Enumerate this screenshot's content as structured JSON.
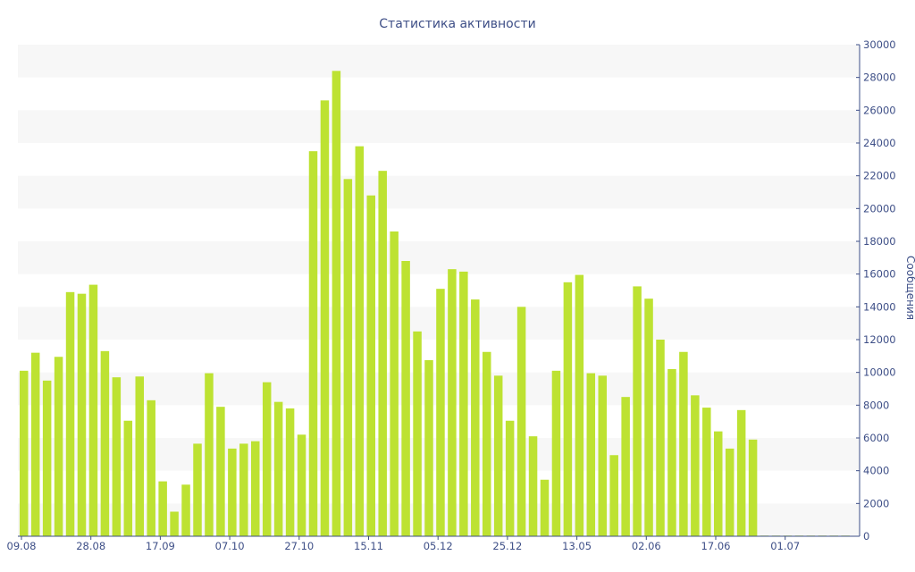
{
  "chart_data": {
    "type": "bar",
    "title": "Статистика активности",
    "ylabel": "Сообщения",
    "xlabel": "",
    "ylim": [
      0,
      30000
    ],
    "y_ticks": [
      0,
      2000,
      4000,
      6000,
      8000,
      10000,
      12000,
      14000,
      16000,
      18000,
      20000,
      22000,
      24000,
      26000,
      28000,
      30000
    ],
    "y_axis_side": "right",
    "grid": "alternating horizontal bands",
    "x_tick_labels": [
      "09.08",
      "28.08",
      "17.09",
      "07.10",
      "27.10",
      "15.11",
      "05.12",
      "25.12",
      "13.05",
      "02.06",
      "17.06",
      "01.07"
    ],
    "values": [
      10100,
      11200,
      9500,
      10950,
      14900,
      14800,
      15350,
      11300,
      9700,
      7050,
      9750,
      8300,
      3350,
      1500,
      3150,
      5650,
      9950,
      7900,
      5350,
      5650,
      5800,
      9400,
      8200,
      7800,
      6200,
      23500,
      26600,
      28400,
      21800,
      23800,
      20800,
      22300,
      18600,
      16800,
      12500,
      10750,
      15100,
      16300,
      16150,
      14450,
      11250,
      9800,
      7050,
      14000,
      6100,
      3450,
      10100,
      15500,
      15950,
      9950,
      9800,
      4950,
      8500,
      15250,
      14500,
      12000,
      10200,
      11250,
      8600,
      7850,
      6400,
      5350,
      7700,
      5900,
      40,
      40,
      40,
      40,
      40,
      40,
      40,
      40
    ],
    "colors": {
      "bar": "#bde232",
      "text": "#3e4f87",
      "band": "#f7f7f7",
      "axis": "#3e4f87"
    }
  }
}
